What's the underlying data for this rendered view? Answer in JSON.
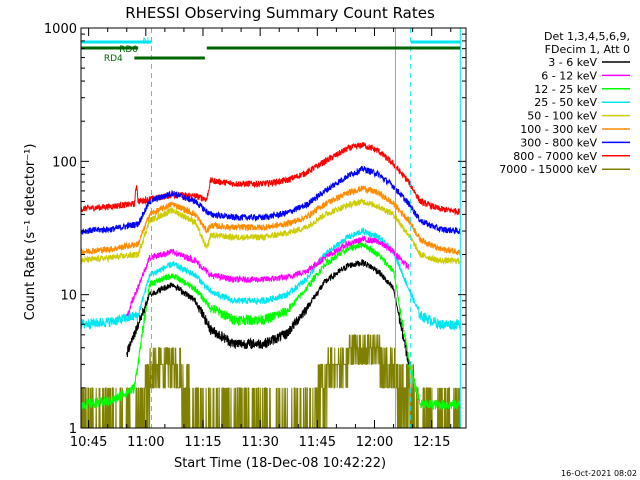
{
  "chart_data": {
    "type": "line",
    "title": "RHESSI Observing Summary Count Rates",
    "xlabel": "Start Time (18-Dec-08 10:42:22)",
    "ylabel": "Count Rate (s⁻¹ detector⁻¹)",
    "yscale": "log",
    "ylim": [
      1,
      1000
    ],
    "xlim_minutes": [
      -2,
      99
    ],
    "x_unit": "minutes after 10:45",
    "x_ticks": [
      0,
      15,
      30,
      45,
      60,
      75,
      90
    ],
    "x_tick_labels": [
      "10:45",
      "11:00",
      "11:15",
      "11:30",
      "11:45",
      "12:00",
      "12:15"
    ],
    "y_ticks": [
      1,
      10,
      100,
      1000
    ],
    "y_tick_labels": [
      "1",
      "10",
      "100",
      "1000"
    ],
    "legend_header": [
      "Det 1,3,4,5,6,9,",
      "FDecim 1, Att 0"
    ],
    "legend_position": "right",
    "vertical_lines_cyan": [
      -2,
      80.5,
      97.5
    ],
    "vertical_lines_cyan_dashed": [
      16.5,
      84.5
    ],
    "flags": {
      "N": {
        "label": "N",
        "color": "#00e5ee",
        "segments": [
          [
            -2,
            16.5
          ],
          [
            84.5,
            97.5
          ]
        ]
      },
      "RD0": {
        "label": "RD0",
        "color": "#006400",
        "segments": [
          [
            -2,
            13
          ],
          [
            31,
            97.5
          ]
        ]
      },
      "RD4": {
        "label": "RD4",
        "color": "#006400",
        "segments": [
          [
            12,
            30.5
          ]
        ]
      }
    },
    "series": [
      {
        "name": "3 - 6 keV",
        "color": "#000000",
        "x": [
          10,
          16,
          22,
          28,
          32,
          38,
          46,
          52,
          57,
          62,
          68,
          72,
          76,
          80,
          84
        ],
        "values": [
          3.6,
          10,
          12,
          9,
          5.5,
          4.3,
          4.3,
          5.1,
          7.8,
          12.5,
          16.5,
          17.5,
          15,
          11,
          3
        ]
      },
      {
        "name": "6 - 12 keV",
        "color": "#ff00ff",
        "x": [
          10,
          16,
          22,
          28,
          32,
          38,
          46,
          52,
          57,
          62,
          68,
          72,
          76,
          80,
          84
        ],
        "values": [
          7,
          19,
          21,
          18,
          14,
          13,
          13,
          13.5,
          15,
          19,
          24,
          26,
          25,
          21,
          16
        ]
      },
      {
        "name": "12 - 25 keV",
        "color": "#00ff00",
        "x": [
          -2,
          6,
          12,
          16,
          22,
          28,
          32,
          38,
          46,
          52,
          57,
          62,
          68,
          72,
          76,
          80,
          84,
          87,
          92,
          97.5
        ],
        "values": [
          1.5,
          1.6,
          2,
          12,
          14,
          11,
          8,
          6.5,
          6.5,
          7.5,
          11,
          17,
          22,
          24,
          20,
          15,
          3.2,
          1.5,
          1.5,
          1.5
        ]
      },
      {
        "name": "25 - 50 keV",
        "color": "#00e5ee",
        "x": [
          -2,
          6,
          13,
          16,
          22,
          28,
          32,
          38,
          46,
          52,
          57,
          62,
          68,
          72,
          76,
          80,
          84,
          87,
          92,
          97.5
        ],
        "values": [
          6,
          6.3,
          7,
          14,
          17,
          14,
          10.5,
          9,
          9,
          10,
          13,
          20,
          27,
          30,
          27,
          21,
          11,
          7,
          6,
          6
        ]
      },
      {
        "name": "50 - 100 keV",
        "color": "#cccc00",
        "x": [
          -2,
          6,
          13,
          16,
          22,
          28,
          31,
          32,
          38,
          46,
          52,
          57,
          62,
          68,
          72,
          76,
          80,
          84,
          87,
          92,
          97.5
        ],
        "values": [
          18,
          19,
          20,
          36,
          43,
          35,
          22,
          28,
          27,
          27,
          29,
          32,
          40,
          47,
          50,
          46,
          40,
          28,
          20,
          18,
          18
        ]
      },
      {
        "name": "100 - 300 keV",
        "color": "#ff8c00",
        "x": [
          -2,
          6,
          13,
          16,
          22,
          28,
          31,
          32,
          38,
          46,
          52,
          57,
          62,
          68,
          72,
          76,
          80,
          84,
          87,
          92,
          97.5
        ],
        "values": [
          21,
          22,
          24,
          40,
          48,
          40,
          30,
          33,
          32,
          32,
          34,
          38,
          48,
          58,
          63,
          58,
          48,
          36,
          26,
          22,
          21
        ]
      },
      {
        "name": "300 - 800 keV",
        "color": "#0000ff",
        "x": [
          -2,
          6,
          13,
          16,
          22,
          28,
          31,
          32,
          38,
          46,
          52,
          57,
          62,
          68,
          72,
          76,
          80,
          84,
          87,
          92,
          97.5
        ],
        "values": [
          30,
          31,
          34,
          50,
          58,
          50,
          42,
          40,
          38,
          38,
          41,
          47,
          60,
          78,
          88,
          80,
          65,
          48,
          36,
          31,
          30
        ]
      },
      {
        "name": "800 - 7000 keV",
        "color": "#ff0000",
        "x": [
          -2,
          6,
          12,
          12.6,
          13,
          16,
          22,
          28,
          31,
          32,
          38,
          46,
          52,
          57,
          62,
          68,
          72,
          76,
          80,
          84,
          87,
          92,
          97.5
        ],
        "values": [
          44,
          46,
          48,
          68,
          50,
          52,
          56,
          55,
          52,
          72,
          68,
          68,
          72,
          82,
          100,
          125,
          133,
          120,
          95,
          70,
          50,
          44,
          42
        ]
      },
      {
        "name": "7000 - 15000 keV",
        "color": "#808000",
        "x": [
          -2,
          14,
          15,
          17,
          23,
          26,
          27,
          40,
          58,
          60,
          62,
          63,
          66,
          70,
          75,
          78,
          80,
          82,
          84,
          87,
          97.5
        ],
        "values": [
          1,
          1,
          2,
          3,
          3,
          2,
          1,
          1,
          1,
          2,
          2,
          3,
          3,
          4,
          4,
          3,
          3,
          2,
          2,
          1,
          1
        ]
      }
    ],
    "footer_timestamp": "16-Oct-2021 08:02"
  }
}
